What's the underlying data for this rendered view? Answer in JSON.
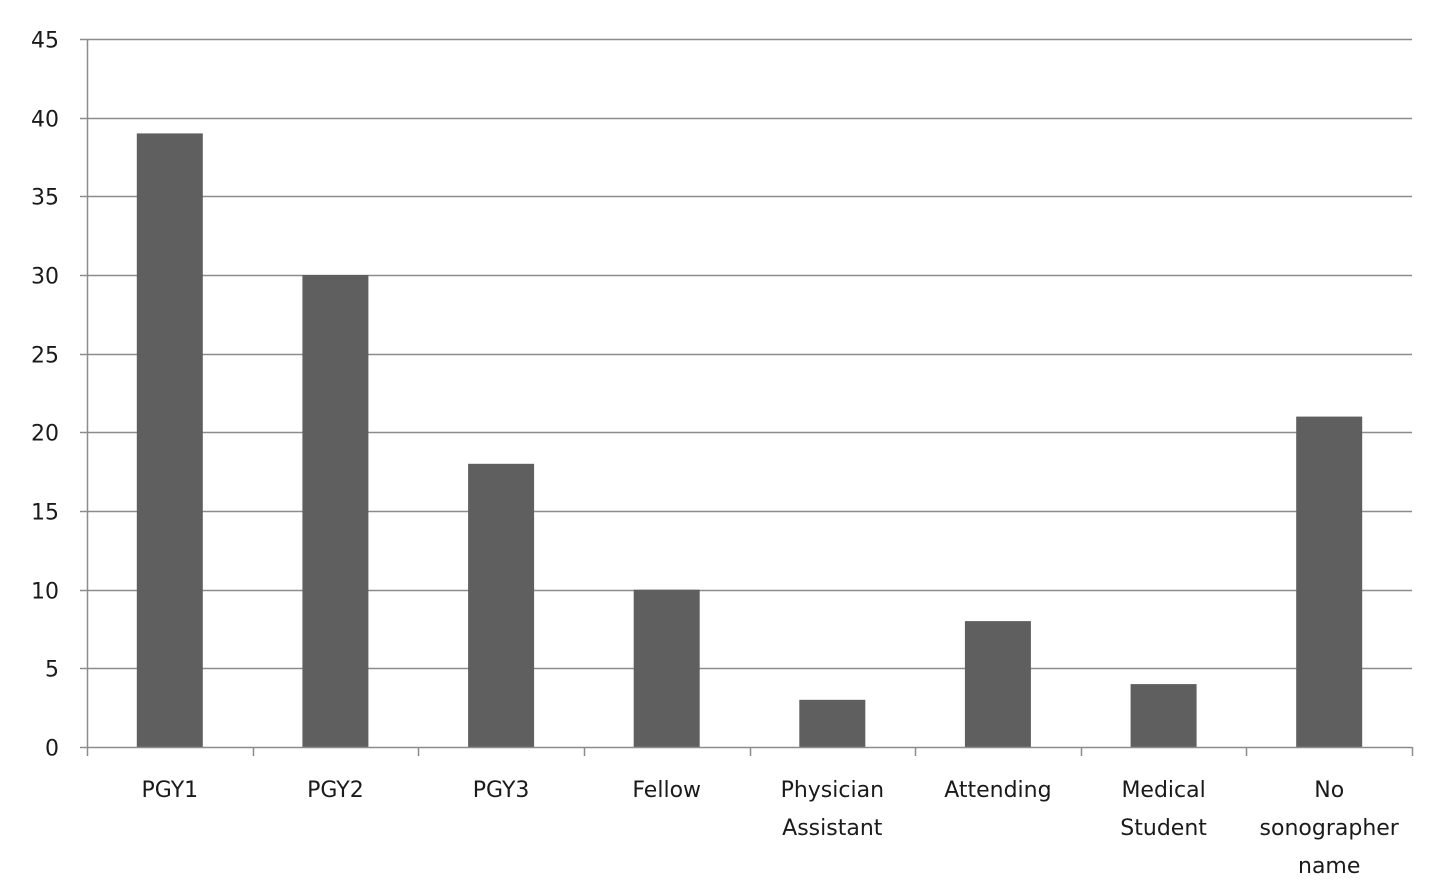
{
  "chart_data": {
    "type": "bar",
    "title": "",
    "xlabel": "",
    "ylabel": "",
    "categories": [
      "PGY1",
      "PGY2",
      "PGY3",
      "Fellow",
      "Physician Assistant",
      "Attending",
      "Medical Student",
      "No sonographer name"
    ],
    "category_lines": [
      [
        "PGY1"
      ],
      [
        "PGY2"
      ],
      [
        "PGY3"
      ],
      [
        "Fellow"
      ],
      [
        "Physician",
        "Assistant"
      ],
      [
        "Attending"
      ],
      [
        "Medical",
        "Student"
      ],
      [
        "No",
        "sonographer",
        "name"
      ]
    ],
    "values": [
      39,
      30,
      18,
      10,
      3,
      8,
      4,
      21
    ],
    "ylim": [
      0,
      45
    ],
    "yticks": [
      0,
      5,
      10,
      15,
      20,
      25,
      30,
      35,
      40,
      45
    ],
    "grid": true,
    "legend": "none",
    "bar_color": "#5f5f5f",
    "grid_color": "#8c8c8c",
    "axis_color": "#8c8c8c"
  }
}
